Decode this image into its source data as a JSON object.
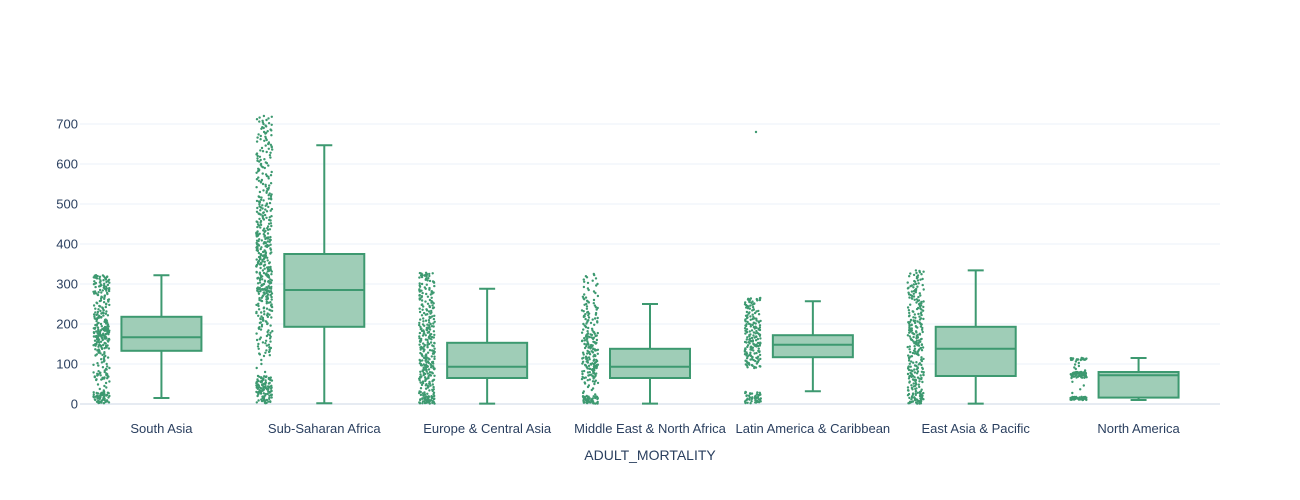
{
  "chart_data": {
    "type": "box",
    "title": "",
    "xlabel": "ADULT_MORTALITY",
    "ylabel": "",
    "ylim": [
      0,
      720
    ],
    "yticks": [
      0,
      100,
      200,
      300,
      400,
      500,
      600,
      700
    ],
    "grid": true,
    "legend": "none",
    "colors": {
      "fill": "#9fcdb7",
      "line": "#3d9970",
      "points": "#3d9970",
      "grid": "#ebf0f8",
      "text": "#2a3f5f"
    },
    "categories": [
      "South Asia",
      "Sub-Saharan Africa",
      "Europe & Central Asia",
      "Middle East & North Africa",
      "Latin America & Caribbean",
      "East Asia & Pacific",
      "North America"
    ],
    "boxes": [
      {
        "category": "South Asia",
        "lowerfence": 15,
        "q1": 133,
        "median": 167,
        "q3": 218,
        "upperfence": 322,
        "points_min": 2,
        "points_max": 322,
        "points": [
          2,
          8,
          15,
          20,
          25,
          30,
          60,
          70,
          80,
          100,
          120,
          135,
          145,
          150,
          160,
          165,
          170,
          175,
          180,
          185,
          190,
          200,
          210,
          220,
          230,
          245,
          260,
          275,
          285,
          295,
          305,
          315,
          322
        ]
      },
      {
        "category": "Sub-Saharan Africa",
        "lowerfence": 2,
        "q1": 193,
        "median": 285,
        "q3": 375,
        "upperfence": 647,
        "points_min": 2,
        "points_max": 720,
        "points": [
          2,
          10,
          20,
          28,
          32,
          38,
          42,
          48,
          55,
          62,
          70,
          120,
          140,
          160,
          180,
          200,
          215,
          230,
          245,
          260,
          270,
          280,
          285,
          290,
          300,
          310,
          320,
          330,
          340,
          350,
          360,
          370,
          380,
          390,
          400,
          410,
          420,
          430,
          445,
          460,
          475,
          490,
          505,
          520,
          540,
          560,
          580,
          600,
          620,
          640,
          660,
          680,
          700,
          720
        ]
      },
      {
        "category": "Europe & Central Asia",
        "lowerfence": 1,
        "q1": 65,
        "median": 93,
        "q3": 153,
        "upperfence": 288,
        "points_min": 1,
        "points_max": 328,
        "points": [
          1,
          5,
          10,
          15,
          20,
          30,
          45,
          55,
          65,
          75,
          85,
          93,
          100,
          110,
          120,
          130,
          140,
          150,
          160,
          170,
          180,
          190,
          200,
          215,
          230,
          245,
          260,
          275,
          288,
          305,
          320,
          328
        ]
      },
      {
        "category": "Middle East & North Africa",
        "lowerfence": 1,
        "q1": 65,
        "median": 93,
        "q3": 138,
        "upperfence": 250,
        "points_min": 1,
        "points_max": 325,
        "points": [
          1,
          5,
          10,
          15,
          20,
          50,
          65,
          75,
          85,
          93,
          100,
          110,
          120,
          130,
          140,
          150,
          160,
          170,
          180,
          200,
          215,
          230,
          250,
          270,
          300,
          325
        ]
      },
      {
        "category": "Latin America & Caribbean",
        "lowerfence": 32,
        "q1": 117,
        "median": 148,
        "q3": 172,
        "upperfence": 257,
        "points_min": 2,
        "points_max": 680,
        "points": [
          2,
          8,
          15,
          22,
          30,
          90,
          100,
          110,
          120,
          130,
          140,
          148,
          155,
          165,
          175,
          185,
          195,
          205,
          215,
          230,
          245,
          257,
          265,
          680
        ]
      },
      {
        "category": "East Asia & Pacific",
        "lowerfence": 1,
        "q1": 70,
        "median": 138,
        "q3": 193,
        "upperfence": 334,
        "points_min": 1,
        "points_max": 334,
        "points": [
          1,
          5,
          12,
          20,
          28,
          40,
          55,
          65,
          75,
          85,
          95,
          110,
          125,
          138,
          150,
          160,
          170,
          180,
          190,
          200,
          210,
          225,
          240,
          255,
          270,
          285,
          300,
          318,
          334
        ]
      },
      {
        "category": "North America",
        "lowerfence": 10,
        "q1": 16,
        "median": 72,
        "q3": 80,
        "upperfence": 115,
        "points_min": 10,
        "points_max": 115,
        "points": [
          10,
          12,
          14,
          16,
          18,
          65,
          70,
          72,
          75,
          78,
          80,
          110,
          112,
          115
        ]
      }
    ]
  }
}
